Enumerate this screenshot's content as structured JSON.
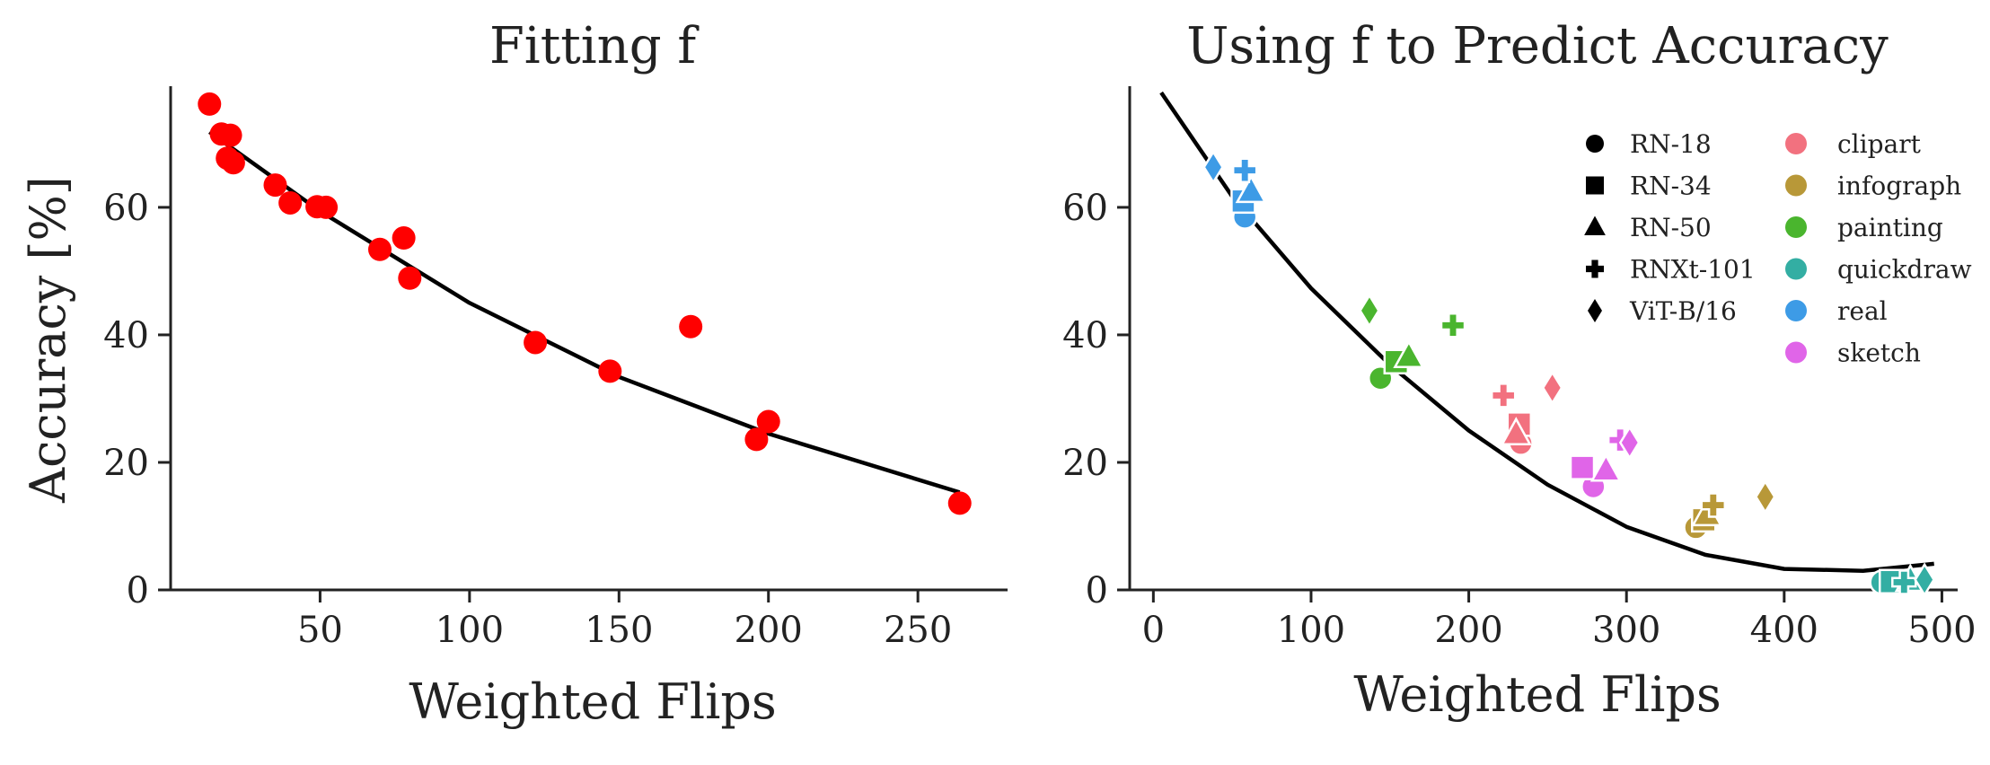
{
  "chart_data": [
    {
      "type": "scatter",
      "title": "Fitting f",
      "xlabel": "Weighted Flips",
      "ylabel": "Accuracy [%]",
      "xlim": [
        0,
        280
      ],
      "ylim": [
        0,
        79
      ],
      "xticks": [
        50,
        100,
        150,
        200,
        250
      ],
      "yticks": [
        0,
        20,
        40,
        60
      ],
      "marker_color": "#ff0000",
      "points": [
        {
          "x": 13,
          "y": 76.2
        },
        {
          "x": 17,
          "y": 71.5
        },
        {
          "x": 20,
          "y": 71.3
        },
        {
          "x": 19,
          "y": 67.7
        },
        {
          "x": 21,
          "y": 67.0
        },
        {
          "x": 35,
          "y": 63.5
        },
        {
          "x": 40,
          "y": 60.7
        },
        {
          "x": 49,
          "y": 60.1
        },
        {
          "x": 52,
          "y": 60.0
        },
        {
          "x": 70,
          "y": 53.4
        },
        {
          "x": 78,
          "y": 55.2
        },
        {
          "x": 80,
          "y": 48.9
        },
        {
          "x": 122,
          "y": 38.8
        },
        {
          "x": 147,
          "y": 34.3
        },
        {
          "x": 174,
          "y": 41.3
        },
        {
          "x": 196,
          "y": 23.6
        },
        {
          "x": 200,
          "y": 26.4
        },
        {
          "x": 264,
          "y": 13.6
        }
      ],
      "fit_curve": {
        "x": [
          13,
          50,
          100,
          150,
          200,
          264
        ],
        "y": [
          71.8,
          59.4,
          45.0,
          33.4,
          24.5,
          15.3
        ]
      }
    },
    {
      "type": "scatter",
      "title": "Using f to Predict Accuracy",
      "xlabel": "Weighted Flips",
      "ylabel": "",
      "xlim": [
        -15,
        510
      ],
      "ylim": [
        0,
        79
      ],
      "xticks": [
        0,
        100,
        200,
        300,
        400,
        500
      ],
      "yticks": [
        0,
        20,
        40,
        60
      ],
      "legend_position": "top-right",
      "models": [
        {
          "name": "RN-18",
          "marker": "circle"
        },
        {
          "name": "RN-34",
          "marker": "square"
        },
        {
          "name": "RN-50",
          "marker": "triangle"
        },
        {
          "name": "RNXt-101",
          "marker": "plus"
        },
        {
          "name": "ViT-B/16",
          "marker": "diamond"
        }
      ],
      "domains": [
        {
          "name": "clipart",
          "color": "#f2717f"
        },
        {
          "name": "infograph",
          "color": "#b89838"
        },
        {
          "name": "painting",
          "color": "#4ab52e"
        },
        {
          "name": "quickdraw",
          "color": "#33aea3"
        },
        {
          "name": "real",
          "color": "#3d9be6"
        },
        {
          "name": "sketch",
          "color": "#e065e8"
        }
      ],
      "points": [
        {
          "domain": "real",
          "model": "RN-18",
          "x": 58,
          "y": 58.5
        },
        {
          "domain": "real",
          "model": "RN-34",
          "x": 57,
          "y": 61.0
        },
        {
          "domain": "real",
          "model": "RN-50",
          "x": 62,
          "y": 62.5
        },
        {
          "domain": "real",
          "model": "RNXt-101",
          "x": 58,
          "y": 65.8
        },
        {
          "domain": "real",
          "model": "ViT-B/16",
          "x": 38,
          "y": 66.3
        },
        {
          "domain": "painting",
          "model": "RN-18",
          "x": 144,
          "y": 33.2
        },
        {
          "domain": "painting",
          "model": "RN-34",
          "x": 154,
          "y": 35.8
        },
        {
          "domain": "painting",
          "model": "RN-50",
          "x": 162,
          "y": 36.6
        },
        {
          "domain": "painting",
          "model": "RNXt-101",
          "x": 190,
          "y": 41.5
        },
        {
          "domain": "painting",
          "model": "ViT-B/16",
          "x": 137,
          "y": 43.8
        },
        {
          "domain": "clipart",
          "model": "RN-18",
          "x": 233,
          "y": 23.0
        },
        {
          "domain": "clipart",
          "model": "RN-34",
          "x": 232,
          "y": 26.0
        },
        {
          "domain": "clipart",
          "model": "RN-50",
          "x": 230,
          "y": 24.5
        },
        {
          "domain": "clipart",
          "model": "RNXt-101",
          "x": 222,
          "y": 30.5
        },
        {
          "domain": "clipart",
          "model": "ViT-B/16",
          "x": 253,
          "y": 31.7
        },
        {
          "domain": "sketch",
          "model": "RN-18",
          "x": 279,
          "y": 16.2
        },
        {
          "domain": "sketch",
          "model": "RN-34",
          "x": 272,
          "y": 19.2
        },
        {
          "domain": "sketch",
          "model": "RN-50",
          "x": 287,
          "y": 18.8
        },
        {
          "domain": "sketch",
          "model": "RNXt-101",
          "x": 296,
          "y": 23.5
        },
        {
          "domain": "sketch",
          "model": "ViT-B/16",
          "x": 302,
          "y": 23.1
        },
        {
          "domain": "infograph",
          "model": "RN-18",
          "x": 344,
          "y": 9.8
        },
        {
          "domain": "infograph",
          "model": "RN-34",
          "x": 349,
          "y": 11.0
        },
        {
          "domain": "infograph",
          "model": "RN-50",
          "x": 351,
          "y": 11.8
        },
        {
          "domain": "infograph",
          "model": "RNXt-101",
          "x": 355,
          "y": 13.3
        },
        {
          "domain": "infograph",
          "model": "ViT-B/16",
          "x": 388,
          "y": 14.6
        },
        {
          "domain": "quickdraw",
          "model": "RN-18",
          "x": 462,
          "y": 1.2
        },
        {
          "domain": "quickdraw",
          "model": "RN-34",
          "x": 468,
          "y": 1.3
        },
        {
          "domain": "quickdraw",
          "model": "RN-50",
          "x": 480,
          "y": 1.5
        },
        {
          "domain": "quickdraw",
          "model": "RNXt-101",
          "x": 476,
          "y": 1.2
        },
        {
          "domain": "quickdraw",
          "model": "ViT-B/16",
          "x": 489,
          "y": 1.6
        }
      ],
      "fit_curve": {
        "x": [
          5,
          50,
          100,
          150,
          200,
          250,
          300,
          350,
          400,
          450,
          495
        ],
        "y": [
          78.0,
          61.7,
          47.3,
          35.3,
          25.0,
          16.5,
          9.9,
          5.5,
          3.3,
          3.0,
          4.1
        ]
      }
    }
  ]
}
